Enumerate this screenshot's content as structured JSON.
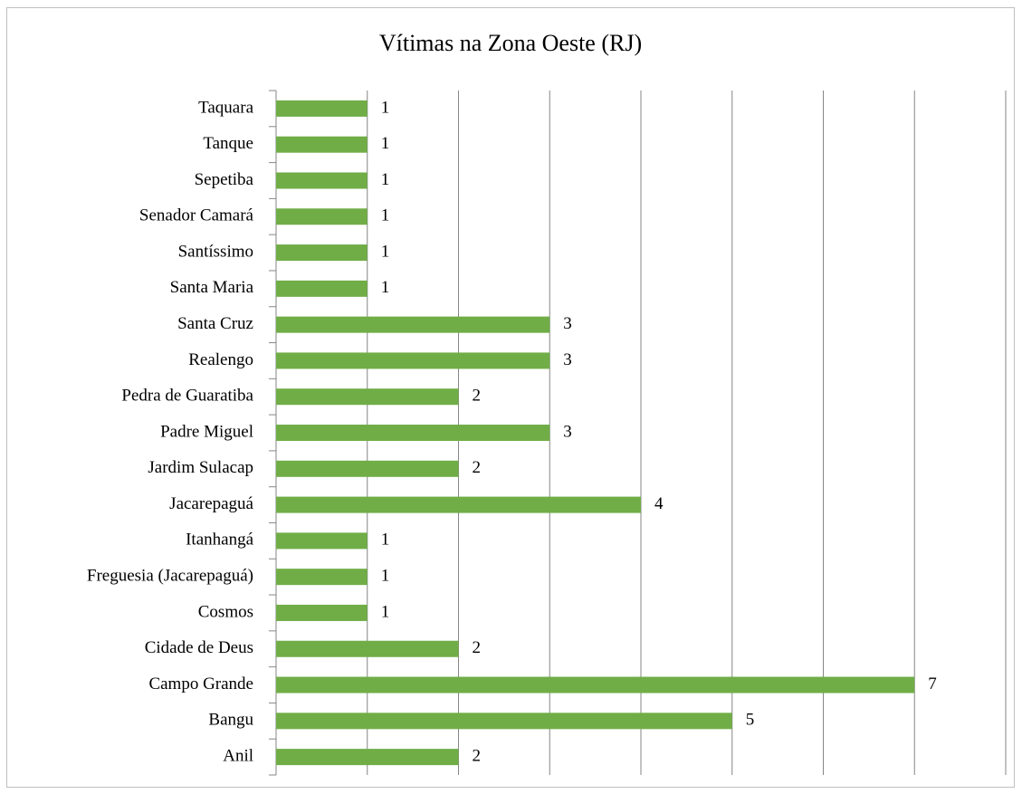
{
  "chart_data": {
    "type": "bar",
    "orientation": "horizontal",
    "title": "Vítimas na Zona Oeste (RJ)",
    "categories": [
      "Taquara",
      "Tanque",
      "Sepetiba",
      "Senador Camará",
      "Santíssimo",
      "Santa Maria",
      "Santa Cruz",
      "Realengo",
      "Pedra de Guaratiba",
      "Padre Miguel",
      "Jardim Sulacap",
      "Jacarepaguá",
      "Itanhangá",
      "Freguesia (Jacarepaguá)",
      "Cosmos",
      "Cidade de Deus",
      "Campo Grande",
      "Bangu",
      "Anil"
    ],
    "values": [
      1,
      1,
      1,
      1,
      1,
      1,
      3,
      3,
      2,
      3,
      2,
      4,
      1,
      1,
      1,
      2,
      7,
      5,
      2
    ],
    "color": "#70ad47",
    "xlim": [
      0,
      8
    ],
    "xticks": [
      0,
      1,
      2,
      3,
      4,
      5,
      6,
      7,
      8
    ],
    "grid": true
  }
}
